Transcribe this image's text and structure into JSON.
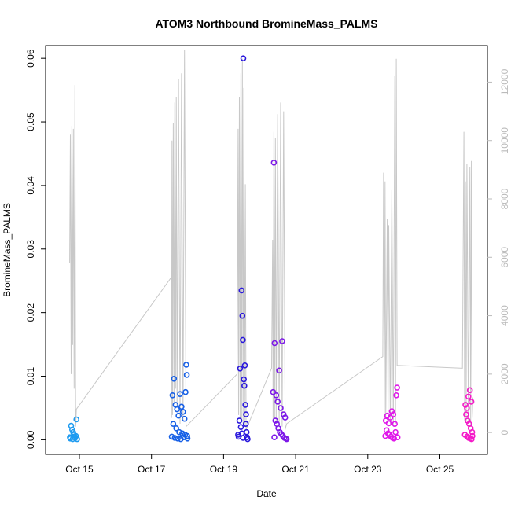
{
  "chart_data": {
    "type": "scatter",
    "title": "ATOM3 Northbound BromineMass_PALMS",
    "xlabel": "Date",
    "ylabel": "BromineMass_PALMS",
    "x_range": [
      "2017-10-14T01:30",
      "2017-10-26T07:40"
    ],
    "y_range": [
      -0.0023,
      0.062
    ],
    "y_ticks": [
      "0.00",
      "0.01",
      "0.02",
      "0.03",
      "0.04",
      "0.05",
      "0.06"
    ],
    "y2_ticks": [
      "0",
      "2000",
      "4000",
      "6000",
      "8000",
      "10000",
      "12000"
    ],
    "y2_range": [
      -750,
      13250
    ],
    "x_ticks": [
      {
        "label": "Oct 15",
        "date": "2017-10-15"
      },
      {
        "label": "Oct 17",
        "date": "2017-10-17"
      },
      {
        "label": "Oct 19",
        "date": "2017-10-19"
      },
      {
        "label": "Oct 21",
        "date": "2017-10-21"
      },
      {
        "label": "Oct 23",
        "date": "2017-10-23"
      },
      {
        "label": "Oct 25",
        "date": "2017-10-25"
      }
    ],
    "series": [
      {
        "color": "#1e9bf0",
        "points": [
          [
            "2017-10-14T18:30",
            0.0022
          ],
          [
            "2017-10-14T19:10",
            0.0016
          ],
          [
            "2017-10-14T19:50",
            0.0012
          ],
          [
            "2017-10-14T20:20",
            0.0008
          ],
          [
            "2017-10-14T20:50",
            0.0005
          ],
          [
            "2017-10-14T21:10",
            0.0003
          ],
          [
            "2017-10-14T17:40",
            0.0004
          ],
          [
            "2017-10-14T18:00",
            0.0002
          ],
          [
            "2017-10-14T22:00",
            0.0032
          ],
          [
            "2017-10-14T21:40",
            0.0006
          ],
          [
            "2017-10-14T22:30",
            0.0001
          ],
          [
            "2017-10-14T19:30",
            0.0001
          ]
        ]
      },
      {
        "color": "#1760e6",
        "points": [
          [
            "2017-10-17T14:00",
            0.007
          ],
          [
            "2017-10-17T15:00",
            0.0096
          ],
          [
            "2017-10-17T16:00",
            0.0055
          ],
          [
            "2017-10-17T17:00",
            0.0048
          ],
          [
            "2017-10-17T18:00",
            0.0038
          ],
          [
            "2017-10-17T19:00",
            0.0072
          ],
          [
            "2017-10-17T20:00",
            0.0052
          ],
          [
            "2017-10-17T21:00",
            0.0044
          ],
          [
            "2017-10-17T22:00",
            0.0033
          ],
          [
            "2017-10-17T22:40",
            0.0075
          ],
          [
            "2017-10-17T23:10",
            0.0118
          ],
          [
            "2017-10-17T23:30",
            0.0102
          ],
          [
            "2017-10-17T14:30",
            0.0025
          ],
          [
            "2017-10-17T16:30",
            0.0018
          ],
          [
            "2017-10-17T18:30",
            0.0012
          ],
          [
            "2017-10-17T20:30",
            0.001
          ],
          [
            "2017-10-17T22:20",
            0.0008
          ],
          [
            "2017-10-17T13:30",
            0.0005
          ],
          [
            "2017-10-17T15:30",
            0.0003
          ],
          [
            "2017-10-17T17:30",
            0.0002
          ],
          [
            "2017-10-17T19:30",
            0.0001
          ],
          [
            "2017-10-17T21:30",
            0.0004
          ],
          [
            "2017-10-17T23:50",
            0.0006
          ],
          [
            "2017-10-17T23:59",
            0.0002
          ]
        ]
      },
      {
        "color": "#2a18dc",
        "points": [
          [
            "2017-10-19T10:00",
            0.0005
          ],
          [
            "2017-10-19T11:00",
            0.0112
          ],
          [
            "2017-10-19T12:00",
            0.0235
          ],
          [
            "2017-10-19T12:30",
            0.0195
          ],
          [
            "2017-10-19T12:50",
            0.0157
          ],
          [
            "2017-10-19T13:10",
            0.06
          ],
          [
            "2017-10-19T13:30",
            0.0095
          ],
          [
            "2017-10-19T13:50",
            0.0085
          ],
          [
            "2017-10-19T14:10",
            0.0117
          ],
          [
            "2017-10-19T14:30",
            0.0055
          ],
          [
            "2017-10-19T15:00",
            0.004
          ],
          [
            "2017-10-19T10:30",
            0.003
          ],
          [
            "2017-10-19T11:30",
            0.002
          ],
          [
            "2017-10-19T14:50",
            0.0025
          ],
          [
            "2017-10-19T15:20",
            0.0012
          ],
          [
            "2017-10-19T09:40",
            0.0008
          ],
          [
            "2017-10-19T12:10",
            0.001
          ],
          [
            "2017-10-19T13:00",
            0.0003
          ],
          [
            "2017-10-19T15:40",
            0.0004
          ],
          [
            "2017-10-19T16:00",
            0.0001
          ]
        ]
      },
      {
        "color": "#7d18e8",
        "points": [
          [
            "2017-10-20T09:00",
            0.0075
          ],
          [
            "2017-10-20T09:30",
            0.0436
          ],
          [
            "2017-10-20T10:00",
            0.0152
          ],
          [
            "2017-10-20T11:00",
            0.007
          ],
          [
            "2017-10-20T12:00",
            0.006
          ],
          [
            "2017-10-20T13:00",
            0.0109
          ],
          [
            "2017-10-20T14:00",
            0.005
          ],
          [
            "2017-10-20T15:00",
            0.0155
          ],
          [
            "2017-10-20T16:00",
            0.004
          ],
          [
            "2017-10-20T17:00",
            0.0035
          ],
          [
            "2017-10-20T10:30",
            0.003
          ],
          [
            "2017-10-20T11:30",
            0.0025
          ],
          [
            "2017-10-20T12:30",
            0.0018
          ],
          [
            "2017-10-20T13:30",
            0.0012
          ],
          [
            "2017-10-20T14:30",
            0.0009
          ],
          [
            "2017-10-20T15:30",
            0.0006
          ],
          [
            "2017-10-20T16:30",
            0.0003
          ],
          [
            "2017-10-20T17:30",
            0.0002
          ],
          [
            "2017-10-20T18:00",
            0.0001
          ],
          [
            "2017-10-20T09:50",
            0.0004
          ]
        ]
      },
      {
        "color": "#e018ea",
        "points": [
          [
            "2017-10-23T12:00",
            0.003
          ],
          [
            "2017-10-23T13:00",
            0.0038
          ],
          [
            "2017-10-23T14:00",
            0.0026
          ],
          [
            "2017-10-23T15:00",
            0.0035
          ],
          [
            "2017-10-23T16:00",
            0.0045
          ],
          [
            "2017-10-23T17:00",
            0.004
          ],
          [
            "2017-10-23T18:00",
            0.0025
          ],
          [
            "2017-10-23T19:00",
            0.007
          ],
          [
            "2017-10-23T19:30",
            0.0082
          ],
          [
            "2017-10-23T12:30",
            0.0015
          ],
          [
            "2017-10-23T13:30",
            0.001
          ],
          [
            "2017-10-23T14:30",
            0.0008
          ],
          [
            "2017-10-23T15:30",
            0.0005
          ],
          [
            "2017-10-23T16:30",
            0.0003
          ],
          [
            "2017-10-23T17:30",
            0.0002
          ],
          [
            "2017-10-23T18:30",
            0.0012
          ],
          [
            "2017-10-23T19:50",
            0.0004
          ],
          [
            "2017-10-23T11:40",
            0.0006
          ]
        ]
      },
      {
        "color": "#f41ac8",
        "points": [
          [
            "2017-10-25T17:00",
            0.0055
          ],
          [
            "2017-10-25T18:00",
            0.005
          ],
          [
            "2017-10-25T19:00",
            0.0068
          ],
          [
            "2017-10-25T20:00",
            0.0078
          ],
          [
            "2017-10-25T21:00",
            0.006
          ],
          [
            "2017-10-25T17:30",
            0.004
          ],
          [
            "2017-10-25T18:30",
            0.003
          ],
          [
            "2017-10-25T19:30",
            0.0025
          ],
          [
            "2017-10-25T20:30",
            0.0018
          ],
          [
            "2017-10-25T21:30",
            0.0012
          ],
          [
            "2017-10-25T16:40",
            0.0008
          ],
          [
            "2017-10-25T18:10",
            0.0005
          ],
          [
            "2017-10-25T19:10",
            0.0003
          ],
          [
            "2017-10-25T20:10",
            0.0002
          ],
          [
            "2017-10-25T21:10",
            0.0001
          ],
          [
            "2017-10-25T21:40",
            0.0006
          ]
        ]
      }
    ],
    "secondary_line": {
      "color": "#c8c8c8",
      "points": [
        [
          "2017-10-14T17:30",
          5800
        ],
        [
          "2017-10-14T18:00",
          10200
        ],
        [
          "2017-10-14T18:30",
          2000
        ],
        [
          "2017-10-14T19:00",
          10500
        ],
        [
          "2017-10-14T19:30",
          3000
        ],
        [
          "2017-10-14T20:00",
          10400
        ],
        [
          "2017-10-14T20:30",
          1500
        ],
        [
          "2017-10-14T21:00",
          11900
        ],
        [
          "2017-10-14T21:30",
          200
        ],
        [
          "2017-10-14T22:00",
          800
        ],
        [
          "2017-10-17T13:00",
          5300
        ],
        [
          "2017-10-17T13:20",
          500
        ],
        [
          "2017-10-17T13:40",
          10000
        ],
        [
          "2017-10-17T14:00",
          600
        ],
        [
          "2017-10-17T14:30",
          10600
        ],
        [
          "2017-10-17T15:00",
          1000
        ],
        [
          "2017-10-17T15:30",
          11300
        ],
        [
          "2017-10-17T16:00",
          1500
        ],
        [
          "2017-10-17T16:30",
          11500
        ],
        [
          "2017-10-17T17:00",
          900
        ],
        [
          "2017-10-17T18:00",
          12100
        ],
        [
          "2017-10-17T19:00",
          300
        ],
        [
          "2017-10-17T20:00",
          12300
        ],
        [
          "2017-10-17T21:00",
          400
        ],
        [
          "2017-10-17T22:00",
          13100
        ],
        [
          "2017-10-17T23:00",
          200
        ],
        [
          "2017-10-19T09:00",
          2000
        ],
        [
          "2017-10-19T09:40",
          10400
        ],
        [
          "2017-10-19T10:00",
          600
        ],
        [
          "2017-10-19T10:30",
          11500
        ],
        [
          "2017-10-19T11:00",
          500
        ],
        [
          "2017-10-19T11:30",
          12300
        ],
        [
          "2017-10-19T12:00",
          400
        ],
        [
          "2017-10-19T12:30",
          12800
        ],
        [
          "2017-10-19T13:00",
          300
        ],
        [
          "2017-10-19T13:30",
          11800
        ],
        [
          "2017-10-19T14:00",
          200
        ],
        [
          "2017-10-19T14:30",
          8500
        ],
        [
          "2017-10-19T15:00",
          100
        ],
        [
          "2017-10-20T08:00",
          2200
        ],
        [
          "2017-10-20T08:40",
          6600
        ],
        [
          "2017-10-20T09:00",
          400
        ],
        [
          "2017-10-20T09:30",
          10300
        ],
        [
          "2017-10-20T10:00",
          500
        ],
        [
          "2017-10-20T10:30",
          10100
        ],
        [
          "2017-10-20T11:00",
          400
        ],
        [
          "2017-10-20T12:00",
          10900
        ],
        [
          "2017-10-20T13:00",
          300
        ],
        [
          "2017-10-20T14:00",
          11300
        ],
        [
          "2017-10-20T15:00",
          200
        ],
        [
          "2017-10-20T16:00",
          11000
        ],
        [
          "2017-10-20T17:00",
          100
        ],
        [
          "2017-10-20T18:00",
          300
        ],
        [
          "2017-10-23T10:00",
          2600
        ],
        [
          "2017-10-23T10:30",
          8900
        ],
        [
          "2017-10-23T11:00",
          400
        ],
        [
          "2017-10-23T11:30",
          8600
        ],
        [
          "2017-10-23T12:00",
          500
        ],
        [
          "2017-10-23T13:00",
          7300
        ],
        [
          "2017-10-23T13:30",
          400
        ],
        [
          "2017-10-23T14:00",
          7100
        ],
        [
          "2017-10-23T15:00",
          300
        ],
        [
          "2017-10-23T16:00",
          8300
        ],
        [
          "2017-10-23T17:00",
          200
        ],
        [
          "2017-10-23T18:00",
          12200
        ],
        [
          "2017-10-23T18:30",
          300
        ],
        [
          "2017-10-23T19:00",
          12800
        ],
        [
          "2017-10-23T19:30",
          2300
        ],
        [
          "2017-10-25T15:00",
          2200
        ],
        [
          "2017-10-25T16:00",
          10300
        ],
        [
          "2017-10-25T16:30",
          400
        ],
        [
          "2017-10-25T17:00",
          8600
        ],
        [
          "2017-10-25T17:30",
          400
        ],
        [
          "2017-10-25T18:00",
          9200
        ],
        [
          "2017-10-25T19:00",
          300
        ],
        [
          "2017-10-25T20:00",
          9100
        ],
        [
          "2017-10-25T20:30",
          200
        ],
        [
          "2017-10-25T21:00",
          9300
        ],
        [
          "2017-10-25T21:30",
          500
        ],
        [
          "2017-10-25T22:00",
          1200
        ]
      ]
    }
  }
}
